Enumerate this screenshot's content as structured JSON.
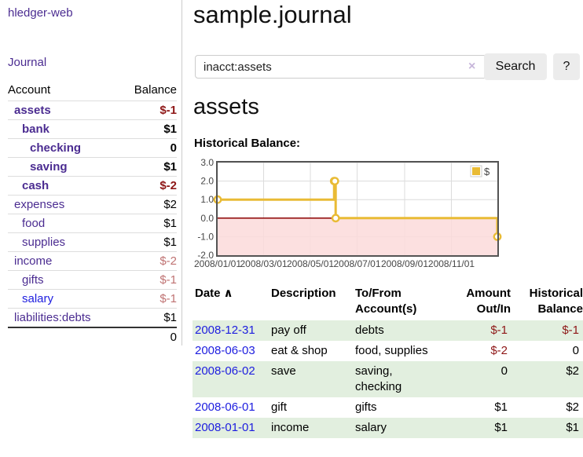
{
  "colors": {
    "purple": "#4b2c91",
    "link_blue": "#1d1ddf",
    "negative_strong": "#8e1717",
    "negative_faded": "#bf7272",
    "row_shade_green": "#e2efdf",
    "series_gold": "#e9bb35",
    "negative_region_pink": "#fbdada",
    "zero_line_red": "#8b0000",
    "grid_line": "#dcdcdc",
    "chart_border": "#545454"
  },
  "app": {
    "brand": "hledger-web",
    "nav_journal": "Journal"
  },
  "sidebar": {
    "columns": {
      "account": "Account",
      "balance": "Balance"
    },
    "accounts": [
      {
        "name": "assets",
        "balance": "$-1",
        "indent": 1,
        "bold": true,
        "neg": "strong"
      },
      {
        "name": "bank",
        "balance": "$1",
        "indent": 2,
        "bold": true,
        "neg": "none"
      },
      {
        "name": "checking",
        "balance": "0",
        "indent": 3,
        "bold": true,
        "neg": "none"
      },
      {
        "name": "saving",
        "balance": "$1",
        "indent": 3,
        "bold": true,
        "neg": "none"
      },
      {
        "name": "cash",
        "balance": "$-2",
        "indent": 2,
        "bold": true,
        "neg": "strong"
      },
      {
        "name": "expenses",
        "balance": "$2",
        "indent": 1,
        "bold": false,
        "neg": "none"
      },
      {
        "name": "food",
        "balance": "$1",
        "indent": 2,
        "bold": false,
        "neg": "none"
      },
      {
        "name": "supplies",
        "balance": "$1",
        "indent": 2,
        "bold": false,
        "neg": "none"
      },
      {
        "name": "income",
        "balance": "$-2",
        "indent": 1,
        "bold": false,
        "neg": "faded"
      },
      {
        "name": "gifts",
        "balance": "$-1",
        "indent": 2,
        "bold": false,
        "neg": "faded"
      },
      {
        "name": "salary",
        "balance": "$-1",
        "indent": 2,
        "bold": false,
        "neg": "faded",
        "blue_link": true
      },
      {
        "name": "liabilities:debts",
        "balance": "$1",
        "indent": 1,
        "bold": false,
        "neg": "none"
      }
    ],
    "total": "0"
  },
  "header": {
    "title": "sample.journal"
  },
  "search": {
    "value": "inacct:assets",
    "clear_icon": "×",
    "button_label": "Search",
    "help_label": "?"
  },
  "account_page": {
    "heading": "assets",
    "chart_label": "Historical Balance:"
  },
  "chart_data": {
    "type": "line",
    "title": "Historical Balance",
    "style": "step",
    "legend": [
      {
        "label": "$"
      }
    ],
    "legend_position": "top-right",
    "grid": true,
    "xlim": [
      "2008-01-01",
      "2008-12-31"
    ],
    "ylim": [
      -2,
      3
    ],
    "y_ticks": [
      "3.0",
      "2.0",
      "1.0",
      "0.0",
      "-1.0",
      "-2.0"
    ],
    "x_ticks": [
      "2008/01/01",
      "2008/03/01",
      "2008/05/01",
      "2008/07/01",
      "2008/09/01",
      "2008/11/01"
    ],
    "negative_region_shaded": true,
    "series": [
      {
        "name": "$",
        "points": [
          {
            "x": "2008-01-01",
            "y": 1
          },
          {
            "x": "2008-06-01",
            "y": 2
          },
          {
            "x": "2008-06-02",
            "y": 2
          },
          {
            "x": "2008-06-03",
            "y": 0
          },
          {
            "x": "2008-12-31",
            "y": -1
          }
        ]
      }
    ]
  },
  "register": {
    "sort_indicator": "∧",
    "columns": [
      "Date",
      "Description",
      "To/From Account(s)",
      "Amount Out/In",
      "Historical Balance"
    ],
    "rows": [
      {
        "date": "2008-12-31",
        "description": "pay off",
        "accounts": "debts",
        "amount": "$-1",
        "balance": "$-1",
        "amount_neg": true,
        "balance_neg": true,
        "shaded": true
      },
      {
        "date": "2008-06-03",
        "description": "eat & shop",
        "accounts": "food, supplies",
        "amount": "$-2",
        "balance": "0",
        "amount_neg": true,
        "balance_neg": false,
        "shaded": false
      },
      {
        "date": "2008-06-02",
        "description": "save",
        "accounts": "saving, checking",
        "amount": "0",
        "balance": "$2",
        "amount_neg": false,
        "balance_neg": false,
        "shaded": true
      },
      {
        "date": "2008-06-01",
        "description": "gift",
        "accounts": "gifts",
        "amount": "$1",
        "balance": "$2",
        "amount_neg": false,
        "balance_neg": false,
        "shaded": false
      },
      {
        "date": "2008-01-01",
        "description": "income",
        "accounts": "salary",
        "amount": "$1",
        "balance": "$1",
        "amount_neg": false,
        "balance_neg": false,
        "shaded": true
      }
    ]
  }
}
